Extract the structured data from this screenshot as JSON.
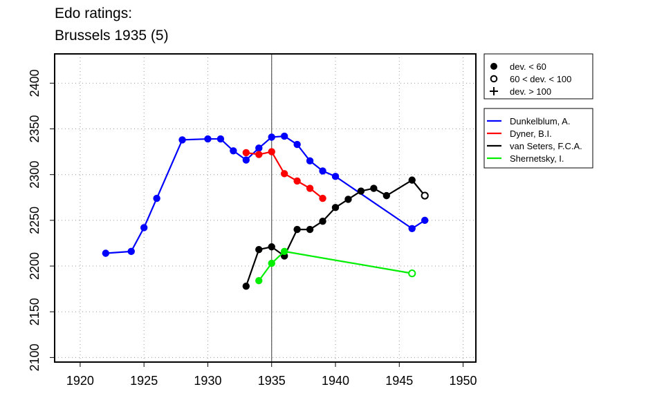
{
  "chart_data": {
    "type": "line",
    "title_lines": [
      "Edo ratings:",
      "Brussels 1935 (5)"
    ],
    "xlabel": "",
    "ylabel": "",
    "xlim": [
      1918,
      1951
    ],
    "ylim": [
      2095,
      2432
    ],
    "x_ticks": [
      1920,
      1925,
      1930,
      1935,
      1940,
      1945,
      1950
    ],
    "y_ticks": [
      2100,
      2150,
      2200,
      2250,
      2300,
      2350,
      2400
    ],
    "grid": true,
    "event_year": 1935,
    "legend_placement": "right",
    "symbol_legend": [
      {
        "symbol": "filled",
        "label": "dev. < 60"
      },
      {
        "symbol": "open",
        "label": "60 < dev. < 100"
      },
      {
        "symbol": "plus",
        "label": "dev. > 100"
      }
    ],
    "series": [
      {
        "name": "Dunkelblum, A.",
        "color": "#0000ff",
        "points": [
          {
            "x": 1922,
            "y": 2214,
            "s": "filled"
          },
          {
            "x": 1924,
            "y": 2216,
            "s": "filled"
          },
          {
            "x": 1925,
            "y": 2242,
            "s": "filled"
          },
          {
            "x": 1926,
            "y": 2274,
            "s": "filled"
          },
          {
            "x": 1928,
            "y": 2338,
            "s": "filled"
          },
          {
            "x": 1930,
            "y": 2339,
            "s": "filled"
          },
          {
            "x": 1931,
            "y": 2339,
            "s": "filled"
          },
          {
            "x": 1932,
            "y": 2326,
            "s": "filled"
          },
          {
            "x": 1933,
            "y": 2316,
            "s": "filled"
          },
          {
            "x": 1934,
            "y": 2329,
            "s": "filled"
          },
          {
            "x": 1935,
            "y": 2341,
            "s": "filled"
          },
          {
            "x": 1936,
            "y": 2342,
            "s": "filled"
          },
          {
            "x": 1937,
            "y": 2333,
            "s": "filled"
          },
          {
            "x": 1938,
            "y": 2315,
            "s": "filled"
          },
          {
            "x": 1939,
            "y": 2304,
            "s": "filled"
          },
          {
            "x": 1940,
            "y": 2298,
            "s": "filled"
          },
          {
            "x": 1946,
            "y": 2241,
            "s": "filled"
          },
          {
            "x": 1947,
            "y": 2250,
            "s": "filled"
          }
        ]
      },
      {
        "name": "Dyner, B.I.",
        "color": "#ff0000",
        "points": [
          {
            "x": 1933,
            "y": 2324,
            "s": "filled"
          },
          {
            "x": 1934,
            "y": 2322,
            "s": "filled"
          },
          {
            "x": 1935,
            "y": 2325,
            "s": "filled"
          },
          {
            "x": 1936,
            "y": 2301,
            "s": "filled"
          },
          {
            "x": 1937,
            "y": 2293,
            "s": "filled"
          },
          {
            "x": 1938,
            "y": 2285,
            "s": "filled"
          },
          {
            "x": 1939,
            "y": 2274,
            "s": "filled"
          }
        ]
      },
      {
        "name": "van Seters, F.C.A.",
        "color": "#000000",
        "points": [
          {
            "x": 1933,
            "y": 2178,
            "s": "filled"
          },
          {
            "x": 1934,
            "y": 2218,
            "s": "filled"
          },
          {
            "x": 1935,
            "y": 2221,
            "s": "filled"
          },
          {
            "x": 1936,
            "y": 2211,
            "s": "filled"
          },
          {
            "x": 1937,
            "y": 2240,
            "s": "filled"
          },
          {
            "x": 1938,
            "y": 2240,
            "s": "filled"
          },
          {
            "x": 1939,
            "y": 2249,
            "s": "filled"
          },
          {
            "x": 1940,
            "y": 2264,
            "s": "filled"
          },
          {
            "x": 1941,
            "y": 2273,
            "s": "filled"
          },
          {
            "x": 1942,
            "y": 2282,
            "s": "filled"
          },
          {
            "x": 1943,
            "y": 2285,
            "s": "filled"
          },
          {
            "x": 1944,
            "y": 2277,
            "s": "filled"
          },
          {
            "x": 1946,
            "y": 2294,
            "s": "filled"
          },
          {
            "x": 1947,
            "y": 2277,
            "s": "open"
          }
        ]
      },
      {
        "name": "Shernetsky, I.",
        "color": "#00ee00",
        "points": [
          {
            "x": 1934,
            "y": 2184,
            "s": "filled"
          },
          {
            "x": 1935,
            "y": 2203,
            "s": "filled"
          },
          {
            "x": 1936,
            "y": 2216,
            "s": "filled"
          },
          {
            "x": 1946,
            "y": 2192,
            "s": "open"
          }
        ]
      }
    ]
  }
}
